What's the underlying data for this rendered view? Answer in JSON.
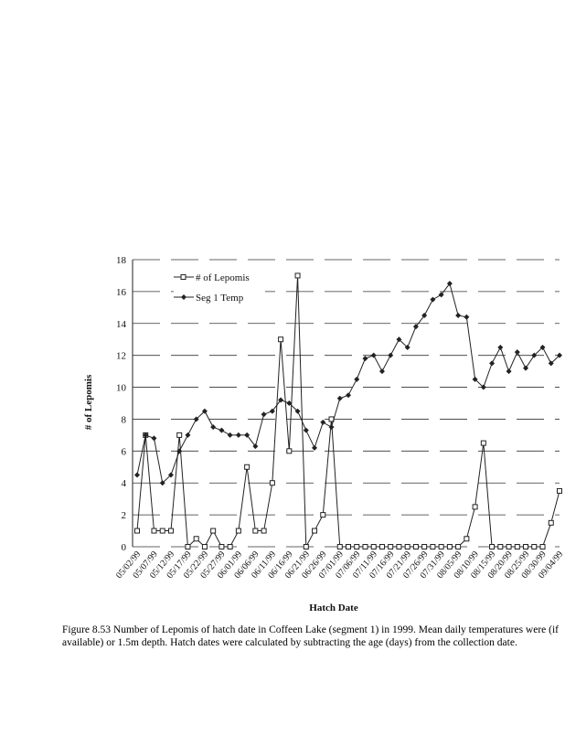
{
  "chart_data": {
    "type": "line",
    "categories": [
      "05/02/99",
      null,
      "05/07/99",
      null,
      "05/12/99",
      null,
      "05/17/99",
      null,
      "05/22/99",
      null,
      "05/27/99",
      null,
      "06/01/99",
      null,
      "06/06/99",
      null,
      "06/11/99",
      null,
      "06/16/99",
      null,
      "06/21/99",
      null,
      "06/26/99",
      null,
      "07/01/99",
      null,
      "07/06/99",
      null,
      "07/11/99",
      null,
      "07/16/99",
      null,
      "07/21/99",
      null,
      "07/26/99",
      null,
      "07/31/99",
      null,
      "08/05/99",
      null,
      "08/10/99",
      null,
      "08/15/99",
      null,
      "08/20/99",
      null,
      "08/25/99",
      null,
      "08/30/99",
      null,
      "09/04/99"
    ],
    "series": [
      {
        "name": "# of Lepomis",
        "color": "#222",
        "marker": "square",
        "values": [
          1,
          7,
          1,
          1,
          1,
          7,
          0,
          0.5,
          0,
          1,
          0,
          0,
          1,
          5,
          1,
          1,
          4,
          13,
          6,
          17,
          0,
          1,
          2,
          8,
          0,
          0,
          0,
          0,
          0,
          0,
          0,
          0,
          0,
          0,
          0,
          0,
          0,
          0,
          0,
          0.5,
          2.5,
          6.5,
          0,
          0,
          0,
          0,
          0,
          0,
          0,
          1.5,
          3.5
        ]
      },
      {
        "name": "Seg 1 Temp",
        "color": "#222",
        "marker": "diamond",
        "values": [
          4.5,
          7,
          6.8,
          4,
          4.5,
          6,
          7,
          8,
          8.5,
          7.5,
          7.3,
          7,
          7,
          7,
          6.3,
          8.3,
          8.5,
          9.2,
          9,
          8.5,
          7.3,
          6.2,
          7.8,
          7.5,
          9.3,
          9.5,
          10.5,
          11.8,
          12,
          11,
          12,
          13,
          12.5,
          13.8,
          14.5,
          15.5,
          15.8,
          16.5,
          14.5,
          14.4,
          10.5,
          10,
          11.5,
          12.5,
          11,
          12.2,
          11.2,
          12,
          12.5,
          11.5,
          12
        ]
      }
    ],
    "ylim": [
      0,
      18
    ],
    "yticks": [
      0,
      2,
      4,
      6,
      8,
      10,
      12,
      14,
      16,
      18
    ],
    "grid": true,
    "y_label": "# of Lepomis",
    "x_label": "Hatch Date",
    "caption": "Figure 8.53  Number of Lepomis of hatch date in Coffeen Lake (segment 1) in 1999.  Mean daily temperatures were (if available) or 1.5m depth.  Hatch dates were calculated by subtracting the age (days) from the collection date."
  }
}
